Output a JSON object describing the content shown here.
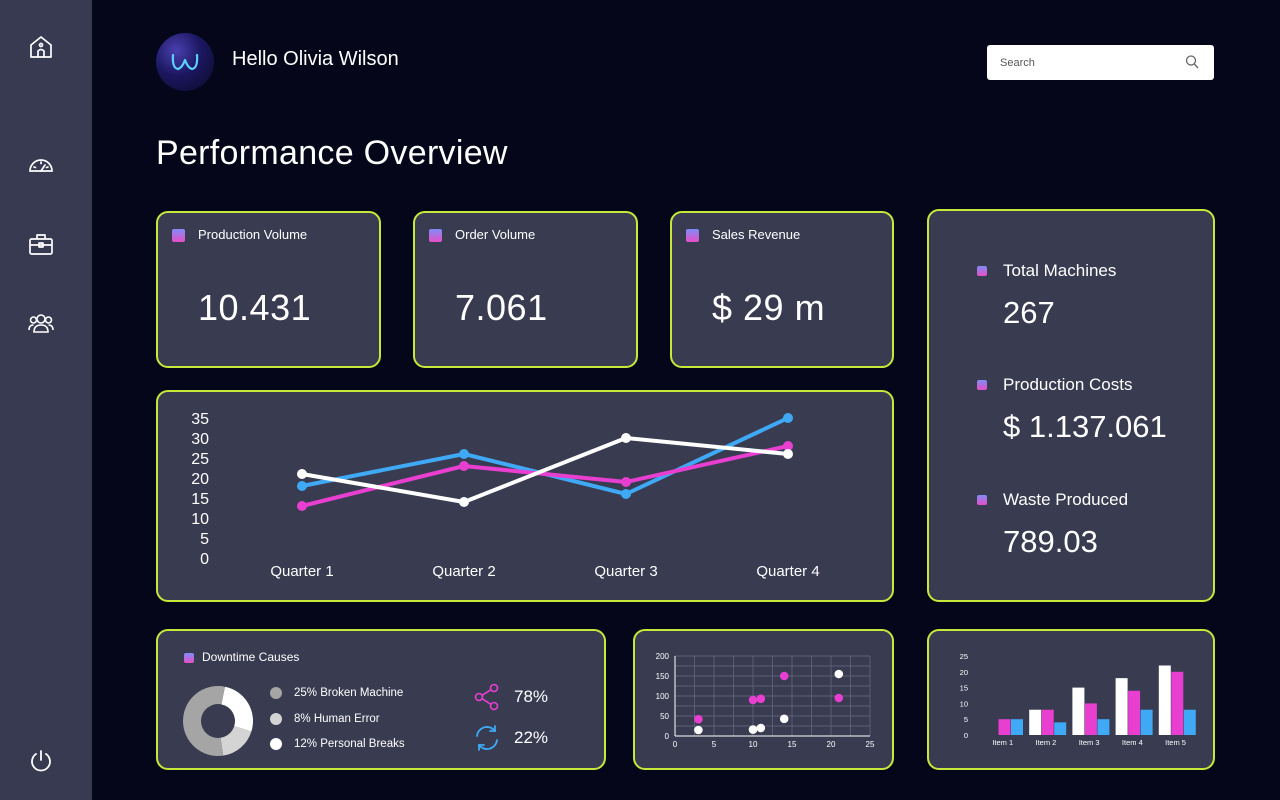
{
  "header": {
    "greeting": "Hello Olivia Wilson",
    "search_placeholder": "Search"
  },
  "page_title": "Performance Overview",
  "sidebar": {
    "items": [
      {
        "icon": "home-icon"
      },
      {
        "icon": "dashboard-gauge-icon"
      },
      {
        "icon": "briefcase-icon"
      },
      {
        "icon": "users-icon"
      },
      {
        "icon": "power-icon"
      }
    ]
  },
  "kpis": [
    {
      "label": "Production Volume",
      "value": "10.431"
    },
    {
      "label": "Order Volume",
      "value": "7.061"
    },
    {
      "label": "Sales Revenue",
      "value": "$ 29 m"
    }
  ],
  "stats": [
    {
      "label": "Total Machines",
      "value": "267"
    },
    {
      "label": "Production Costs",
      "value": "$ 1.137.061"
    },
    {
      "label": "Waste Produced",
      "value": "789.03"
    }
  ],
  "colors": {
    "accent_border": "#c6e83a",
    "card_bg": "#393b51",
    "blue": "#3fa9f5",
    "pink": "#e83fd1",
    "white": "#ffffff"
  },
  "downtime": {
    "title": "Downtime Causes",
    "items": [
      {
        "label": "25% Broken Machine",
        "color": "#a5a5a5",
        "share": 0.25
      },
      {
        "label": "8% Human Error",
        "color": "#d4d4d4",
        "share": 0.08
      },
      {
        "label": "12% Personal Breaks",
        "color": "#ffffff",
        "share": 0.12
      }
    ],
    "metrics": [
      {
        "icon": "share-icon",
        "value": "78%"
      },
      {
        "icon": "refresh-icon",
        "value": "22%"
      }
    ]
  },
  "chart_data": [
    {
      "type": "line",
      "categories": [
        "Quarter 1",
        "Quarter 2",
        "Quarter 3",
        "Quarter 4"
      ],
      "yticks": [
        "0",
        "5",
        "10",
        "15",
        "20",
        "25",
        "30",
        "35"
      ],
      "ylim": [
        0,
        35
      ],
      "series": [
        {
          "name": "blue",
          "color": "#3fa9f5",
          "values": [
            18,
            26,
            16,
            35
          ]
        },
        {
          "name": "pink",
          "color": "#e83fd1",
          "values": [
            13,
            23,
            19,
            28
          ]
        },
        {
          "name": "white",
          "color": "#ffffff",
          "values": [
            21,
            14,
            30,
            26
          ]
        }
      ]
    },
    {
      "type": "scatter",
      "xlim": [
        0,
        25
      ],
      "ylim": [
        0,
        200
      ],
      "xticks": [
        "0",
        "5",
        "10",
        "15",
        "20",
        "25"
      ],
      "yticks": [
        "0",
        "50",
        "100",
        "150",
        "200"
      ],
      "grid": true,
      "series": [
        {
          "name": "pink",
          "color": "#e83fd1",
          "points": [
            [
              3,
              42
            ],
            [
              10,
              90
            ],
            [
              11,
              93
            ],
            [
              14,
              150
            ],
            [
              21,
              95
            ]
          ]
        },
        {
          "name": "white",
          "color": "#ffffff",
          "points": [
            [
              3,
              15
            ],
            [
              10,
              16
            ],
            [
              11,
              20
            ],
            [
              14,
              43
            ],
            [
              21,
              155
            ]
          ]
        }
      ]
    },
    {
      "type": "bar",
      "categories": [
        "Item 1",
        "Item 2",
        "Item 3",
        "Item 4",
        "Item 5"
      ],
      "yticks": [
        "0",
        "5",
        "10",
        "15",
        "20",
        "25"
      ],
      "ylim": [
        0,
        25
      ],
      "series": [
        {
          "name": "white",
          "color": "#ffffff",
          "values": [
            0,
            8,
            15,
            18,
            22
          ]
        },
        {
          "name": "pink",
          "color": "#e83fd1",
          "values": [
            5,
            8,
            10,
            14,
            20
          ]
        },
        {
          "name": "blue",
          "color": "#3fa9f5",
          "values": [
            5,
            4,
            5,
            8,
            8
          ]
        }
      ]
    }
  ]
}
